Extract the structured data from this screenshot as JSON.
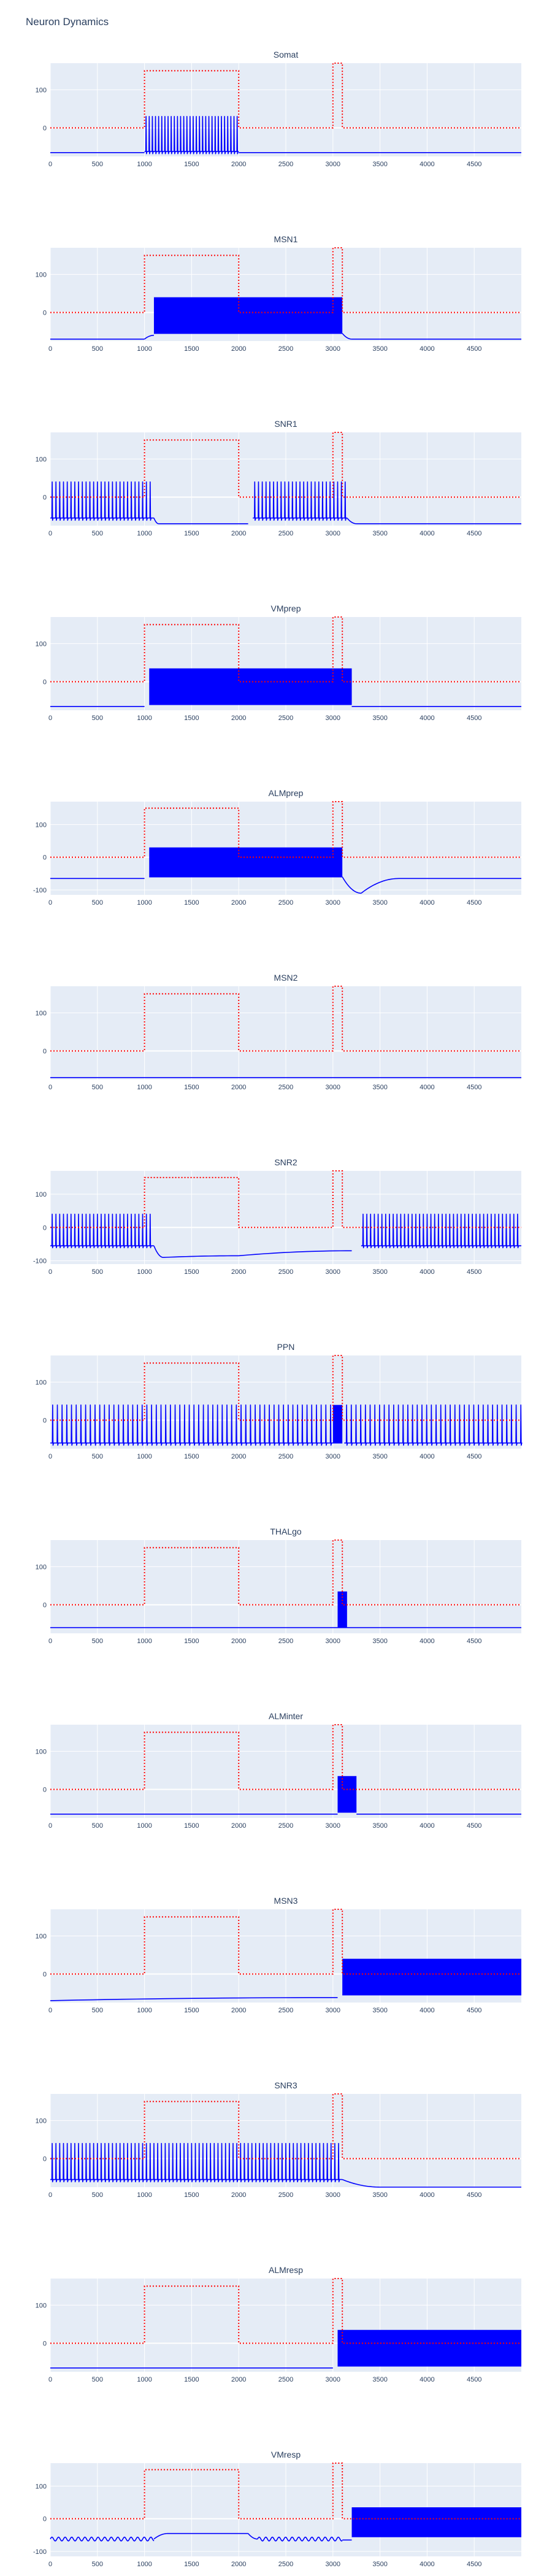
{
  "title": "Neuron Dynamics",
  "colors": {
    "signal": "#0000ff",
    "stimulus": "#ff0000",
    "plot_bg": "#e5ecf6",
    "grid": "#ffffff",
    "text": "#2a3f5f"
  },
  "chart_data": {
    "type": "line",
    "layout": "stacked-subplots",
    "xrange": [
      0,
      5000
    ],
    "xticks": [
      0,
      500,
      1000,
      1500,
      2000,
      2500,
      3000,
      3500,
      4000,
      4500
    ],
    "grid": true,
    "stimulus": {
      "style": "dotted",
      "baseline": 0,
      "pulses": [
        {
          "start": 1000,
          "end": 2000,
          "amplitude": 150
        },
        {
          "start": 3000,
          "end": 3100,
          "amplitude": 170
        }
      ]
    },
    "panels": [
      {
        "name": "Somat",
        "yticks": [
          0,
          100
        ],
        "ylim": [
          -75,
          170
        ],
        "rest": -65,
        "segments": [
          {
            "kind": "flat",
            "x0": 0,
            "x1": 1000,
            "y": -65
          },
          {
            "kind": "spikes",
            "x0": 1000,
            "x1": 2000,
            "rate": 0.03,
            "low": -62,
            "high": 30
          },
          {
            "kind": "flat",
            "x0": 2000,
            "x1": 5000,
            "y": -65
          }
        ]
      },
      {
        "name": "MSN1",
        "yticks": [
          0,
          100
        ],
        "ylim": [
          -75,
          170
        ],
        "rest": -70,
        "segments": [
          {
            "kind": "flat",
            "x0": 0,
            "x1": 1000,
            "y": -70
          },
          {
            "kind": "ramp",
            "x0": 1000,
            "x1": 1100,
            "y0": -70,
            "y1": -60
          },
          {
            "kind": "band",
            "x0": 1100,
            "x1": 3100,
            "low": -55,
            "high": 40
          },
          {
            "kind": "ramp",
            "x0": 3100,
            "x1": 3200,
            "y0": -55,
            "y1": -70
          },
          {
            "kind": "flat",
            "x0": 3200,
            "x1": 5000,
            "y": -70
          }
        ]
      },
      {
        "name": "SNR1",
        "yticks": [
          0,
          100
        ],
        "ylim": [
          -75,
          170
        ],
        "rest": -55,
        "segments": [
          {
            "kind": "spikes",
            "x0": 0,
            "x1": 1100,
            "rate": 0.025,
            "low": -55,
            "high": 40
          },
          {
            "kind": "ramp",
            "x0": 1100,
            "x1": 1150,
            "y0": -55,
            "y1": -70
          },
          {
            "kind": "flat",
            "x0": 1150,
            "x1": 2100,
            "y": -70
          },
          {
            "kind": "spikes",
            "x0": 2150,
            "x1": 3150,
            "rate": 0.025,
            "low": -55,
            "high": 40
          },
          {
            "kind": "ramp",
            "x0": 3150,
            "x1": 3250,
            "y0": -55,
            "y1": -70
          },
          {
            "kind": "flat",
            "x0": 3250,
            "x1": 5000,
            "y": -70
          }
        ]
      },
      {
        "name": "VMprep",
        "yticks": [
          0,
          100
        ],
        "ylim": [
          -75,
          170
        ],
        "rest": -65,
        "segments": [
          {
            "kind": "flat",
            "x0": 0,
            "x1": 1000,
            "y": -65
          },
          {
            "kind": "band",
            "x0": 1050,
            "x1": 3200,
            "low": -60,
            "high": 35
          },
          {
            "kind": "flat",
            "x0": 3200,
            "x1": 5000,
            "y": -65
          }
        ]
      },
      {
        "name": "ALMprep",
        "yticks": [
          -100,
          0,
          100
        ],
        "ylim": [
          -115,
          170
        ],
        "rest": -65,
        "segments": [
          {
            "kind": "flat",
            "x0": 0,
            "x1": 1000,
            "y": -65
          },
          {
            "kind": "band",
            "x0": 1050,
            "x1": 3100,
            "low": -60,
            "high": 30
          },
          {
            "kind": "ramp",
            "x0": 3100,
            "x1": 3300,
            "y0": -60,
            "y1": -110
          },
          {
            "kind": "ramp",
            "x0": 3300,
            "x1": 3700,
            "y0": -110,
            "y1": -65
          },
          {
            "kind": "flat",
            "x0": 3700,
            "x1": 5000,
            "y": -65
          }
        ]
      },
      {
        "name": "MSN2",
        "yticks": [
          0,
          100
        ],
        "ylim": [
          -75,
          170
        ],
        "rest": -70,
        "segments": [
          {
            "kind": "flat",
            "x0": 0,
            "x1": 5000,
            "y": -70
          }
        ]
      },
      {
        "name": "SNR2",
        "yticks": [
          -100,
          0,
          100
        ],
        "ylim": [
          -110,
          170
        ],
        "rest": -55,
        "segments": [
          {
            "kind": "spikes",
            "x0": 0,
            "x1": 1100,
            "rate": 0.025,
            "low": -55,
            "high": 40
          },
          {
            "kind": "ramp",
            "x0": 1100,
            "x1": 1200,
            "y0": -55,
            "y1": -90
          },
          {
            "kind": "ramp",
            "x0": 1200,
            "x1": 2000,
            "y0": -90,
            "y1": -85
          },
          {
            "kind": "ramp",
            "x0": 2000,
            "x1": 3200,
            "y0": -85,
            "y1": -70
          },
          {
            "kind": "spikes",
            "x0": 3300,
            "x1": 5000,
            "rate": 0.025,
            "low": -55,
            "high": 40
          }
        ]
      },
      {
        "name": "PPN",
        "yticks": [
          0,
          100
        ],
        "ylim": [
          -75,
          170
        ],
        "rest": -60,
        "segments": [
          {
            "kind": "spikes",
            "x0": 0,
            "x1": 3000,
            "rate": 0.02,
            "low": -60,
            "high": 40
          },
          {
            "kind": "band",
            "x0": 3000,
            "x1": 3100,
            "low": -60,
            "high": 40
          },
          {
            "kind": "spikes",
            "x0": 3120,
            "x1": 5000,
            "rate": 0.02,
            "low": -60,
            "high": 40
          }
        ]
      },
      {
        "name": "THALgo",
        "yticks": [
          0,
          100
        ],
        "ylim": [
          -75,
          170
        ],
        "rest": -60,
        "segments": [
          {
            "kind": "flat",
            "x0": 0,
            "x1": 3050,
            "y": -60
          },
          {
            "kind": "band",
            "x0": 3050,
            "x1": 3150,
            "low": -60,
            "high": 35
          },
          {
            "kind": "flat",
            "x0": 3150,
            "x1": 5000,
            "y": -60
          }
        ]
      },
      {
        "name": "ALMinter",
        "yticks": [
          0,
          100
        ],
        "ylim": [
          -75,
          170
        ],
        "rest": -65,
        "segments": [
          {
            "kind": "flat",
            "x0": 0,
            "x1": 3050,
            "y": -65
          },
          {
            "kind": "band",
            "x0": 3050,
            "x1": 3250,
            "low": -60,
            "high": 35
          },
          {
            "kind": "flat",
            "x0": 3250,
            "x1": 5000,
            "y": -65
          }
        ]
      },
      {
        "name": "MSN3",
        "yticks": [
          0,
          100
        ],
        "ylim": [
          -75,
          170
        ],
        "rest": -70,
        "segments": [
          {
            "kind": "ramp",
            "x0": 0,
            "x1": 3050,
            "y0": -70,
            "y1": -62
          },
          {
            "kind": "band",
            "x0": 3100,
            "x1": 5000,
            "low": -55,
            "high": 40
          }
        ]
      },
      {
        "name": "SNR3",
        "yticks": [
          0,
          100
        ],
        "ylim": [
          -75,
          170
        ],
        "rest": -55,
        "segments": [
          {
            "kind": "spikes",
            "x0": 0,
            "x1": 3100,
            "rate": 0.025,
            "low": -55,
            "high": 40
          },
          {
            "kind": "ramp",
            "x0": 3100,
            "x1": 3500,
            "y0": -55,
            "y1": -75
          },
          {
            "kind": "flat",
            "x0": 3500,
            "x1": 5000,
            "y": -75
          }
        ]
      },
      {
        "name": "ALMresp",
        "yticks": [
          0,
          100
        ],
        "ylim": [
          -75,
          170
        ],
        "rest": -65,
        "segments": [
          {
            "kind": "flat",
            "x0": 0,
            "x1": 3000,
            "y": -65
          },
          {
            "kind": "band",
            "x0": 3050,
            "x1": 5000,
            "low": -60,
            "high": 35
          }
        ]
      },
      {
        "name": "VMresp",
        "yticks": [
          -100,
          0,
          100
        ],
        "ylim": [
          -115,
          170
        ],
        "rest": -65,
        "segments": [
          {
            "kind": "wave",
            "x0": 0,
            "x1": 1100,
            "base": -62,
            "amp": 6,
            "period": 70
          },
          {
            "kind": "ramp",
            "x0": 1100,
            "x1": 1250,
            "y0": -62,
            "y1": -45
          },
          {
            "kind": "flat",
            "x0": 1250,
            "x1": 2100,
            "y": -45
          },
          {
            "kind": "ramp",
            "x0": 2100,
            "x1": 2200,
            "y0": -45,
            "y1": -62
          },
          {
            "kind": "wave",
            "x0": 2200,
            "x1": 3100,
            "base": -62,
            "amp": 6,
            "period": 70
          },
          {
            "kind": "flat",
            "x0": 3100,
            "x1": 3200,
            "y": -65
          },
          {
            "kind": "band",
            "x0": 3200,
            "x1": 5000,
            "low": -55,
            "high": 35
          }
        ]
      }
    ]
  }
}
